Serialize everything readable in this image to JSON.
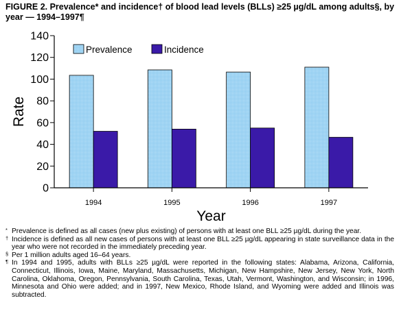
{
  "figure": {
    "title": "FIGURE 2. Prevalence* and incidence† of blood lead levels (BLLs) ≥25 µg/dL among adults§, by year — 1994–1997¶"
  },
  "chart_data": {
    "type": "bar",
    "categories": [
      "1994",
      "1995",
      "1996",
      "1997"
    ],
    "series": [
      {
        "name": "Prevalence",
        "values": [
          103.5,
          108.5,
          106.5,
          111
        ],
        "color": "#8ecbf0"
      },
      {
        "name": "Incidence",
        "values": [
          52,
          54,
          55,
          46.5
        ],
        "color": "#3a1aa8"
      }
    ],
    "xlabel": "Year",
    "ylabel": "Rate",
    "ylim": [
      0,
      140
    ],
    "yticks": [
      0,
      20,
      40,
      60,
      80,
      100,
      120,
      140
    ],
    "legend_position": "top-left",
    "grid": false
  },
  "footnotes": [
    {
      "mark": "*",
      "text": "Prevalence is defined as all cases (new plus existing) of persons with at least one BLL ≥25 µg/dL during the year."
    },
    {
      "mark": "†",
      "text": "Incidence is defined as all new cases of persons with at least one BLL ≥25 µg/dL appearing in state surveillance data in the year who were not recorded in the immediately preceding year."
    },
    {
      "mark": "§",
      "text": "Per 1 million adults aged 16–64 years."
    },
    {
      "mark": "¶",
      "text": "In 1994 and 1995, adults with BLLs ≥25 µg/dL were reported in the following states: Alabama, Arizona, California, Connecticut, Illinois, Iowa, Maine, Maryland, Massachusetts, Michigan, New Hampshire, New Jersey, New York, North Carolina, Oklahoma, Oregon, Pennsylvania, South Carolina, Texas, Utah, Vermont, Washington, and Wisconsin; in 1996, Minnesota and Ohio were added; and in 1997, New Mexico, Rhode Island, and Wyoming were added and Illinois was subtracted."
    }
  ]
}
